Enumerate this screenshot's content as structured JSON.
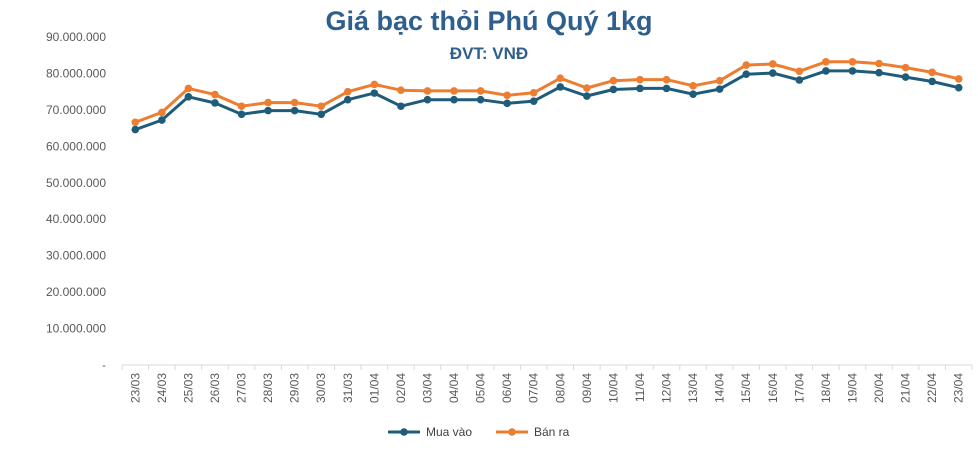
{
  "chart_data": {
    "type": "line",
    "title": "Giá bạc thỏi Phú Quý 1kg",
    "subtitle": "ĐVT: VNĐ",
    "xlabel": "",
    "ylabel": "",
    "ylim": [
      0,
      90000000
    ],
    "yticks": [
      "-",
      "10.000.000",
      "20.000.000",
      "30.000.000",
      "40.000.000",
      "50.000.000",
      "60.000.000",
      "70.000.000",
      "80.000.000",
      "90.000.000"
    ],
    "grid": false,
    "legend_position": "bottom",
    "categories": [
      "23/03",
      "24/03",
      "25/03",
      "26/03",
      "27/03",
      "28/03",
      "29/03",
      "30/03",
      "31/03",
      "01/04",
      "02/04",
      "03/04",
      "04/04",
      "05/04",
      "06/04",
      "07/04",
      "08/04",
      "09/04",
      "10/04",
      "11/04",
      "12/04",
      "13/04",
      "14/04",
      "15/04",
      "16/04",
      "17/04",
      "18/04",
      "19/04",
      "20/04",
      "21/04",
      "22/04",
      "23/04"
    ],
    "series": [
      {
        "name": "Mua vào",
        "color": "#1f5c7a",
        "values": [
          64600000,
          67200000,
          73600000,
          71900000,
          68800000,
          69800000,
          69800000,
          68800000,
          72800000,
          74600000,
          71000000,
          72800000,
          72800000,
          72800000,
          71800000,
          72400000,
          76300000,
          73800000,
          75600000,
          75900000,
          75900000,
          74300000,
          75700000,
          79800000,
          80100000,
          78200000,
          80700000,
          80700000,
          80200000,
          79000000,
          77800000,
          76100000
        ]
      },
      {
        "name": "Bán ra",
        "color": "#ed7d31",
        "values": [
          66600000,
          69300000,
          75900000,
          74200000,
          71000000,
          72000000,
          72000000,
          71000000,
          75000000,
          77000000,
          75400000,
          75200000,
          75200000,
          75200000,
          74000000,
          74700000,
          78700000,
          76000000,
          78000000,
          78300000,
          78300000,
          76600000,
          78000000,
          82300000,
          82600000,
          80600000,
          83200000,
          83200000,
          82700000,
          81600000,
          80300000,
          78500000
        ]
      }
    ]
  }
}
